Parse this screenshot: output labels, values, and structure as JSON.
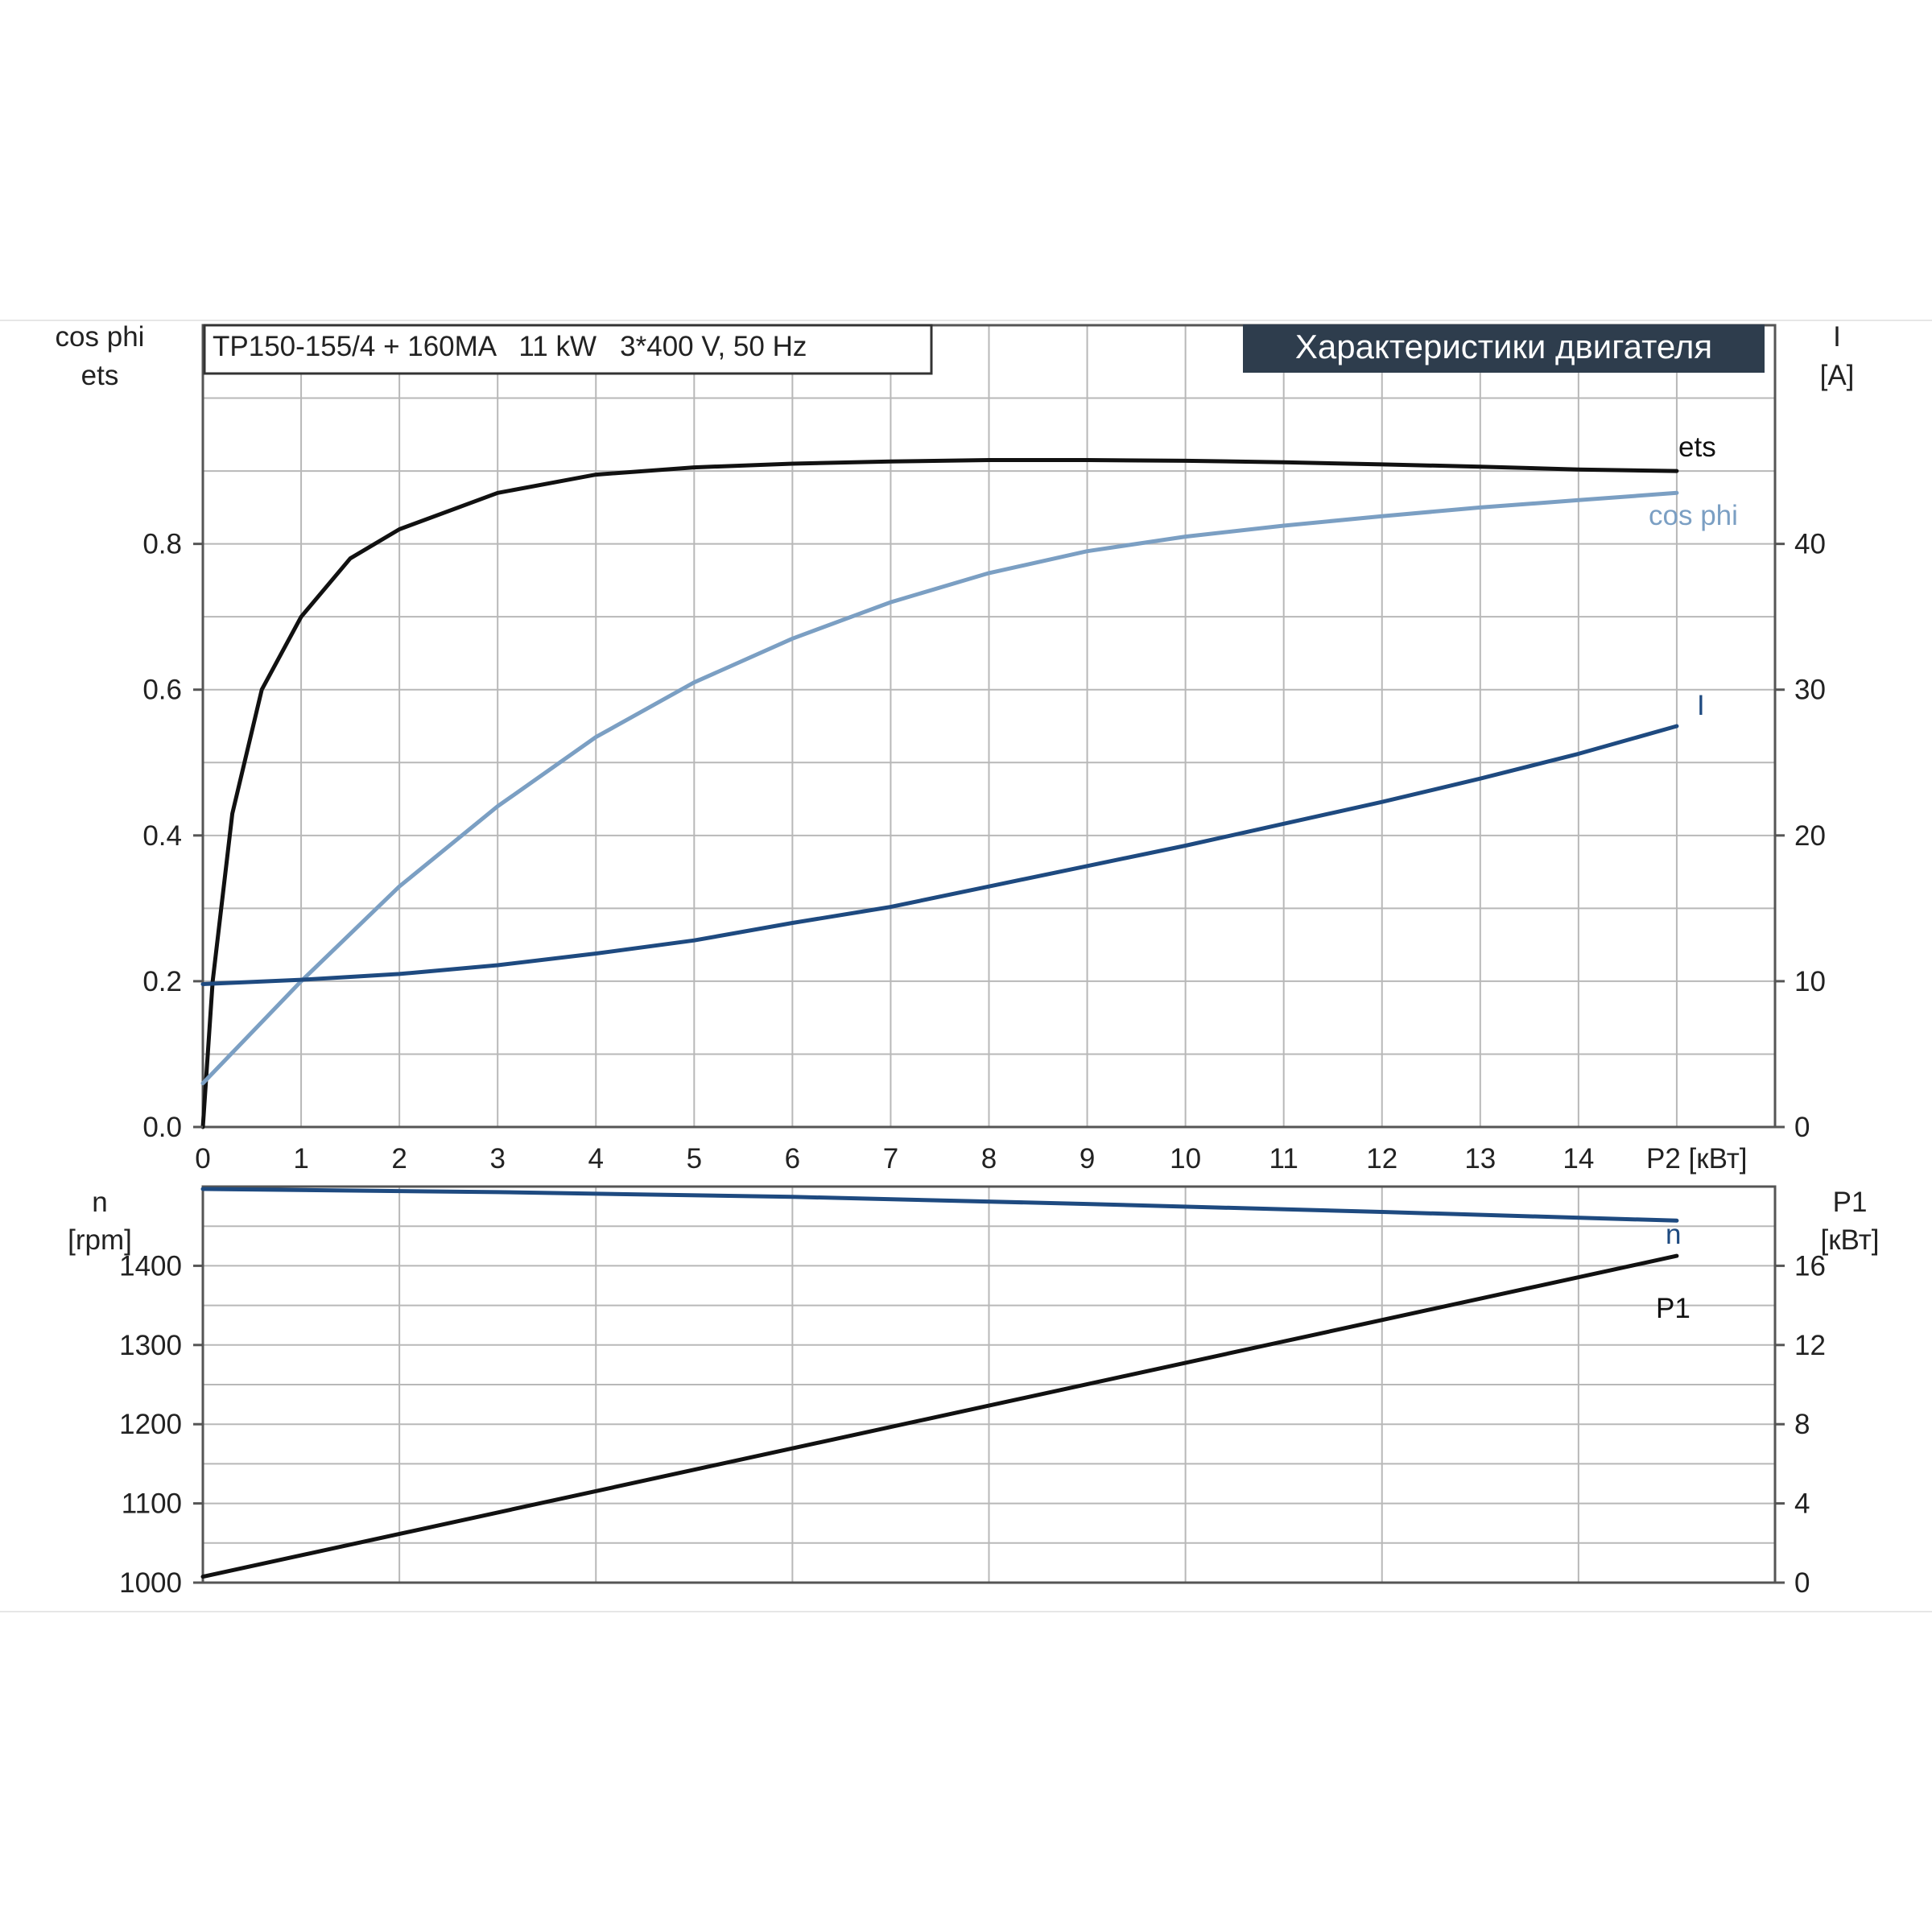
{
  "chart_data": [
    {
      "type": "line",
      "model_label": "TP150-155/4 + 160MA   11 kW   3*400 V, 50 Hz",
      "banner_title": "Характеристики двигателя",
      "xlabel": "P2 [кВт]",
      "x_ticks": [
        "0",
        "1",
        "2",
        "3",
        "4",
        "5",
        "6",
        "7",
        "8",
        "9",
        "10",
        "11",
        "12",
        "13",
        "14"
      ],
      "xlim": [
        0,
        16
      ],
      "left_axis_label_line1": "cos phi",
      "left_axis_label_line2": "ets",
      "left_ticks": [
        "0.0",
        "0.2",
        "0.4",
        "0.6",
        "0.8"
      ],
      "left_ylim": [
        0,
        1.1
      ],
      "right_axis_label_line1": "I",
      "right_axis_label_line2": "[A]",
      "right_ticks": [
        "0",
        "10",
        "20",
        "30",
        "40"
      ],
      "right_ylim": [
        0,
        55
      ],
      "grid": true,
      "series": [
        {
          "name": "ets",
          "axis": "left",
          "color": "#111111",
          "x": [
            0,
            0.1,
            0.3,
            0.6,
            1.0,
            1.5,
            2,
            3,
            4,
            5,
            6,
            7,
            8,
            9,
            10,
            11,
            12,
            13,
            14,
            15
          ],
          "y": [
            0.0,
            0.2,
            0.43,
            0.6,
            0.7,
            0.78,
            0.82,
            0.87,
            0.895,
            0.905,
            0.91,
            0.913,
            0.915,
            0.915,
            0.914,
            0.912,
            0.909,
            0.906,
            0.902,
            0.9
          ]
        },
        {
          "name": "cos phi",
          "axis": "left",
          "color": "#7b9fc3",
          "x": [
            0,
            1,
            2,
            3,
            4,
            5,
            6,
            7,
            8,
            9,
            10,
            11,
            12,
            13,
            14,
            15
          ],
          "y": [
            0.06,
            0.2,
            0.33,
            0.44,
            0.535,
            0.61,
            0.67,
            0.72,
            0.76,
            0.79,
            0.81,
            0.825,
            0.838,
            0.85,
            0.86,
            0.87
          ]
        },
        {
          "name": "I",
          "axis": "right",
          "color": "#1e4a80",
          "x": [
            0,
            1,
            2,
            3,
            4,
            5,
            6,
            7,
            8,
            9,
            10,
            11,
            12,
            13,
            14,
            15
          ],
          "y": [
            9.8,
            10.1,
            10.5,
            11.1,
            11.9,
            12.8,
            14.0,
            15.1,
            16.5,
            17.9,
            19.3,
            20.8,
            22.3,
            23.9,
            25.6,
            27.5
          ]
        }
      ]
    },
    {
      "type": "line",
      "xlim": [
        0,
        16
      ],
      "left_axis_label_line1": "n",
      "left_axis_label_line2": "[rpm]",
      "left_ticks": [
        "1000",
        "1100",
        "1200",
        "1300",
        "1400"
      ],
      "left_ylim": [
        1000,
        1500
      ],
      "right_axis_label_line1": "P1",
      "right_axis_label_line2": "[кВт]",
      "right_ticks": [
        "0",
        "4",
        "8",
        "12",
        "16"
      ],
      "right_ylim": [
        0,
        20
      ],
      "grid": true,
      "series": [
        {
          "name": "n",
          "axis": "left",
          "color": "#1e4a80",
          "x": [
            0,
            3,
            6,
            9,
            12,
            15
          ],
          "y": [
            1497,
            1493,
            1487,
            1478,
            1468,
            1457
          ]
        },
        {
          "name": "P1",
          "axis": "right",
          "color": "#111111",
          "x": [
            0,
            15
          ],
          "y": [
            0.3,
            16.5
          ]
        }
      ]
    }
  ]
}
